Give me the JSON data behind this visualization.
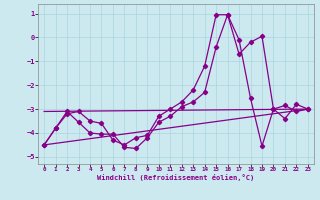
{
  "xlabel": "Windchill (Refroidissement éolien,°C)",
  "xlim": [
    -0.5,
    23.5
  ],
  "ylim": [
    -5.3,
    1.4
  ],
  "yticks": [
    1,
    0,
    -1,
    -2,
    -3,
    -4,
    -5
  ],
  "xticks": [
    0,
    1,
    2,
    3,
    4,
    5,
    6,
    7,
    8,
    9,
    10,
    11,
    12,
    13,
    14,
    15,
    16,
    17,
    18,
    19,
    20,
    21,
    22,
    23
  ],
  "bg_color": "#cce9f0",
  "grid_color": "#aad4df",
  "line_color": "#880088",
  "series1_x": [
    0,
    1,
    2,
    3,
    4,
    5,
    6,
    7,
    8,
    9,
    10,
    11,
    12,
    13,
    14,
    15,
    16,
    17,
    18,
    19,
    20,
    21,
    22,
    23
  ],
  "series1_y": [
    -4.5,
    -3.8,
    -3.1,
    -3.55,
    -4.0,
    -4.05,
    -4.05,
    -4.6,
    -4.65,
    -4.2,
    -3.55,
    -3.3,
    -2.9,
    -2.7,
    -2.3,
    -0.4,
    0.95,
    -0.1,
    -2.55,
    -4.55,
    -3.0,
    -2.85,
    -3.1,
    -3.0
  ],
  "series2_x": [
    0,
    1,
    2,
    3,
    4,
    5,
    6,
    7,
    8,
    9,
    10,
    11,
    12,
    13,
    14,
    15,
    16,
    17,
    18,
    19,
    20,
    21,
    22,
    23
  ],
  "series2_y": [
    -4.5,
    -3.8,
    -3.2,
    -3.1,
    -3.5,
    -3.6,
    -4.3,
    -4.5,
    -4.2,
    -4.1,
    -3.3,
    -3.0,
    -2.7,
    -2.2,
    -1.2,
    0.95,
    0.95,
    -0.7,
    -0.2,
    0.05,
    -3.0,
    -3.4,
    -2.8,
    -3.0
  ],
  "series3_x": [
    0,
    23
  ],
  "series3_y": [
    -4.5,
    -3.0
  ],
  "series4_x": [
    0,
    23
  ],
  "series4_y": [
    -3.1,
    -3.0
  ]
}
